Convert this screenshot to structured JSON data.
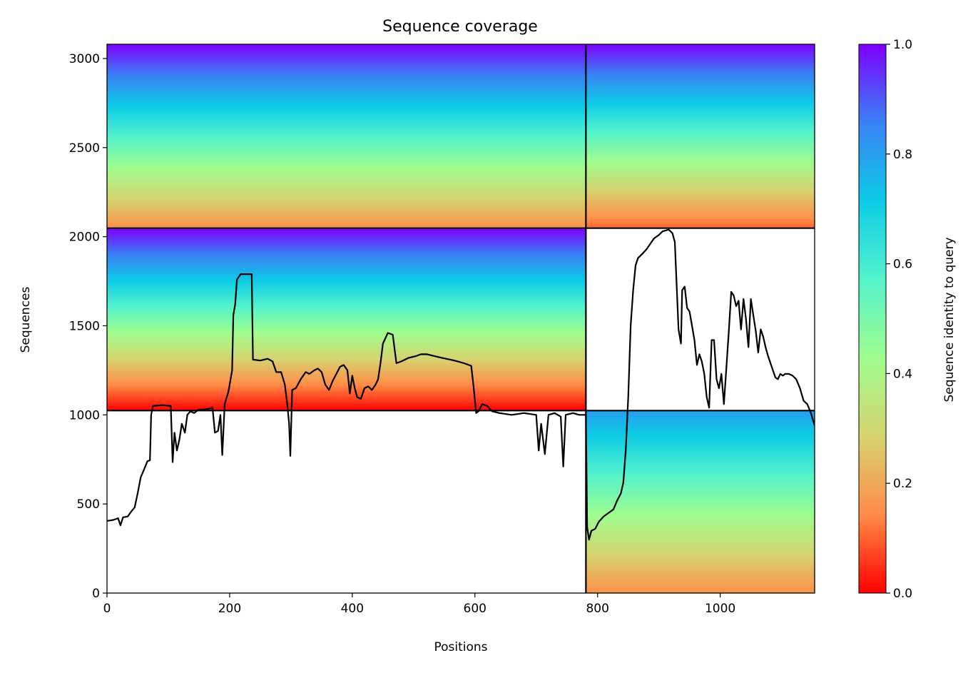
{
  "chart_data": {
    "type": "heatmap",
    "title": "Sequence coverage",
    "xlabel": "Positions",
    "ylabel": "Sequences",
    "xlim": [
      0,
      1154
    ],
    "ylim": [
      0,
      3080
    ],
    "x_ticks": [
      0,
      200,
      400,
      600,
      800,
      1000
    ],
    "y_ticks": [
      0,
      500,
      1000,
      1500,
      2000,
      2500,
      3000
    ],
    "grid": false,
    "colorbar": {
      "label": "Sequence identity to query",
      "range": [
        0,
        1
      ],
      "ticks": [
        0.0,
        0.2,
        0.4,
        0.6,
        0.8,
        1.0
      ],
      "tick_labels": [
        "0.0",
        "0.2",
        "0.4",
        "0.6",
        "0.8",
        "1.0"
      ],
      "colormap": "rainbow_r",
      "colors": [
        "#ff0000",
        "#ff8c46",
        "#d6d370",
        "#9ffd8e",
        "#54f3cc",
        "#0ccbe6",
        "#3a81f5",
        "#7f00ff"
      ]
    },
    "chain_boundaries": {
      "positions": [
        781
      ],
      "sequences": [
        1024,
        2048
      ]
    },
    "blocks": [
      {
        "name": "chain-A-paired-A",
        "x_range": [
          0,
          781
        ],
        "seq_range": [
          2048,
          3080
        ],
        "identity_range": [
          0.15,
          1.0
        ],
        "coverage_span": [
          0,
          781
        ]
      },
      {
        "name": "chain-B-paired-A",
        "x_range": [
          781,
          1154
        ],
        "seq_range": [
          2048,
          3080
        ],
        "identity_range": [
          0.1,
          1.0
        ],
        "coverage_span": [
          781,
          1154
        ]
      },
      {
        "name": "chain-A-unpaired",
        "x_range": [
          0,
          781
        ],
        "seq_range": [
          1024,
          2048
        ],
        "identity_range": [
          0.0,
          1.0
        ],
        "coverage_span": [
          0,
          781
        ]
      },
      {
        "name": "chain-B-unpaired",
        "x_range": [
          781,
          1154
        ],
        "seq_range": [
          0,
          1024
        ],
        "identity_range": [
          0.15,
          0.8
        ],
        "coverage_span": [
          781,
          1154
        ]
      }
    ],
    "coverage_line": {
      "color": "#000000",
      "points": [
        [
          0,
          405
        ],
        [
          10,
          410
        ],
        [
          18,
          420
        ],
        [
          22,
          380
        ],
        [
          26,
          425
        ],
        [
          34,
          430
        ],
        [
          40,
          460
        ],
        [
          45,
          480
        ],
        [
          50,
          560
        ],
        [
          55,
          650
        ],
        [
          60,
          690
        ],
        [
          66,
          740
        ],
        [
          70,
          745
        ],
        [
          72,
          1000
        ],
        [
          75,
          1050
        ],
        [
          90,
          1055
        ],
        [
          104,
          1050
        ],
        [
          107,
          735
        ],
        [
          110,
          900
        ],
        [
          114,
          800
        ],
        [
          118,
          860
        ],
        [
          122,
          950
        ],
        [
          127,
          900
        ],
        [
          131,
          1000
        ],
        [
          136,
          1020
        ],
        [
          142,
          1010
        ],
        [
          150,
          1030
        ],
        [
          158,
          1030
        ],
        [
          166,
          1035
        ],
        [
          172,
          1040
        ],
        [
          176,
          900
        ],
        [
          181,
          910
        ],
        [
          185,
          1000
        ],
        [
          188,
          775
        ],
        [
          192,
          1060
        ],
        [
          198,
          1130
        ],
        [
          204,
          1250
        ],
        [
          206,
          1560
        ],
        [
          209,
          1620
        ],
        [
          212,
          1760
        ],
        [
          218,
          1790
        ],
        [
          236,
          1790
        ],
        [
          238,
          1310
        ],
        [
          250,
          1305
        ],
        [
          262,
          1315
        ],
        [
          270,
          1300
        ],
        [
          276,
          1240
        ],
        [
          284,
          1240
        ],
        [
          290,
          1170
        ],
        [
          294,
          1060
        ],
        [
          297,
          950
        ],
        [
          299,
          770
        ],
        [
          302,
          1140
        ],
        [
          308,
          1150
        ],
        [
          316,
          1200
        ],
        [
          324,
          1240
        ],
        [
          330,
          1230
        ],
        [
          338,
          1250
        ],
        [
          344,
          1260
        ],
        [
          350,
          1240
        ],
        [
          356,
          1170
        ],
        [
          362,
          1140
        ],
        [
          368,
          1190
        ],
        [
          374,
          1230
        ],
        [
          380,
          1270
        ],
        [
          386,
          1280
        ],
        [
          392,
          1250
        ],
        [
          396,
          1120
        ],
        [
          400,
          1220
        ],
        [
          404,
          1150
        ],
        [
          408,
          1100
        ],
        [
          414,
          1090
        ],
        [
          420,
          1150
        ],
        [
          426,
          1160
        ],
        [
          432,
          1140
        ],
        [
          438,
          1170
        ],
        [
          442,
          1200
        ],
        [
          446,
          1290
        ],
        [
          450,
          1400
        ],
        [
          458,
          1460
        ],
        [
          466,
          1450
        ],
        [
          472,
          1290
        ],
        [
          480,
          1300
        ],
        [
          492,
          1320
        ],
        [
          504,
          1330
        ],
        [
          512,
          1340
        ],
        [
          522,
          1340
        ],
        [
          534,
          1330
        ],
        [
          546,
          1320
        ],
        [
          560,
          1310
        ],
        [
          572,
          1300
        ],
        [
          582,
          1290
        ],
        [
          590,
          1280
        ],
        [
          594,
          1275
        ],
        [
          598,
          1150
        ],
        [
          602,
          1010
        ],
        [
          606,
          1020
        ],
        [
          612,
          1060
        ],
        [
          620,
          1050
        ],
        [
          628,
          1020
        ],
        [
          640,
          1010
        ],
        [
          660,
          1000
        ],
        [
          680,
          1010
        ],
        [
          700,
          1000
        ],
        [
          704,
          800
        ],
        [
          708,
          950
        ],
        [
          714,
          780
        ],
        [
          720,
          1000
        ],
        [
          730,
          1010
        ],
        [
          740,
          990
        ],
        [
          744,
          710
        ],
        [
          748,
          1000
        ],
        [
          760,
          1010
        ],
        [
          770,
          1000
        ],
        [
          781,
          1000
        ],
        [
          783,
          370
        ],
        [
          786,
          300
        ],
        [
          790,
          350
        ],
        [
          796,
          360
        ],
        [
          802,
          400
        ],
        [
          810,
          430
        ],
        [
          818,
          450
        ],
        [
          826,
          470
        ],
        [
          832,
          520
        ],
        [
          838,
          560
        ],
        [
          842,
          620
        ],
        [
          846,
          800
        ],
        [
          850,
          1100
        ],
        [
          854,
          1500
        ],
        [
          858,
          1700
        ],
        [
          862,
          1840
        ],
        [
          866,
          1880
        ],
        [
          872,
          1900
        ],
        [
          880,
          1930
        ],
        [
          886,
          1960
        ],
        [
          892,
          1990
        ],
        [
          900,
          2010
        ],
        [
          906,
          2030
        ],
        [
          916,
          2040
        ],
        [
          922,
          2020
        ],
        [
          926,
          1970
        ],
        [
          930,
          1650
        ],
        [
          932,
          1480
        ],
        [
          936,
          1400
        ],
        [
          938,
          1700
        ],
        [
          942,
          1720
        ],
        [
          946,
          1600
        ],
        [
          950,
          1580
        ],
        [
          954,
          1500
        ],
        [
          958,
          1420
        ],
        [
          962,
          1280
        ],
        [
          966,
          1340
        ],
        [
          970,
          1300
        ],
        [
          974,
          1230
        ],
        [
          978,
          1100
        ],
        [
          982,
          1040
        ],
        [
          986,
          1420
        ],
        [
          990,
          1420
        ],
        [
          994,
          1200
        ],
        [
          998,
          1150
        ],
        [
          1002,
          1230
        ],
        [
          1006,
          1060
        ],
        [
          1010,
          1260
        ],
        [
          1014,
          1470
        ],
        [
          1018,
          1690
        ],
        [
          1022,
          1670
        ],
        [
          1026,
          1610
        ],
        [
          1030,
          1640
        ],
        [
          1034,
          1480
        ],
        [
          1038,
          1650
        ],
        [
          1042,
          1540
        ],
        [
          1046,
          1380
        ],
        [
          1050,
          1650
        ],
        [
          1054,
          1560
        ],
        [
          1058,
          1470
        ],
        [
          1062,
          1350
        ],
        [
          1066,
          1480
        ],
        [
          1070,
          1440
        ],
        [
          1074,
          1380
        ],
        [
          1078,
          1330
        ],
        [
          1082,
          1290
        ],
        [
          1086,
          1250
        ],
        [
          1090,
          1210
        ],
        [
          1094,
          1200
        ],
        [
          1098,
          1230
        ],
        [
          1102,
          1220
        ],
        [
          1106,
          1230
        ],
        [
          1112,
          1230
        ],
        [
          1118,
          1220
        ],
        [
          1124,
          1200
        ],
        [
          1130,
          1150
        ],
        [
          1136,
          1080
        ],
        [
          1142,
          1060
        ],
        [
          1148,
          1010
        ],
        [
          1154,
          940
        ]
      ]
    }
  }
}
